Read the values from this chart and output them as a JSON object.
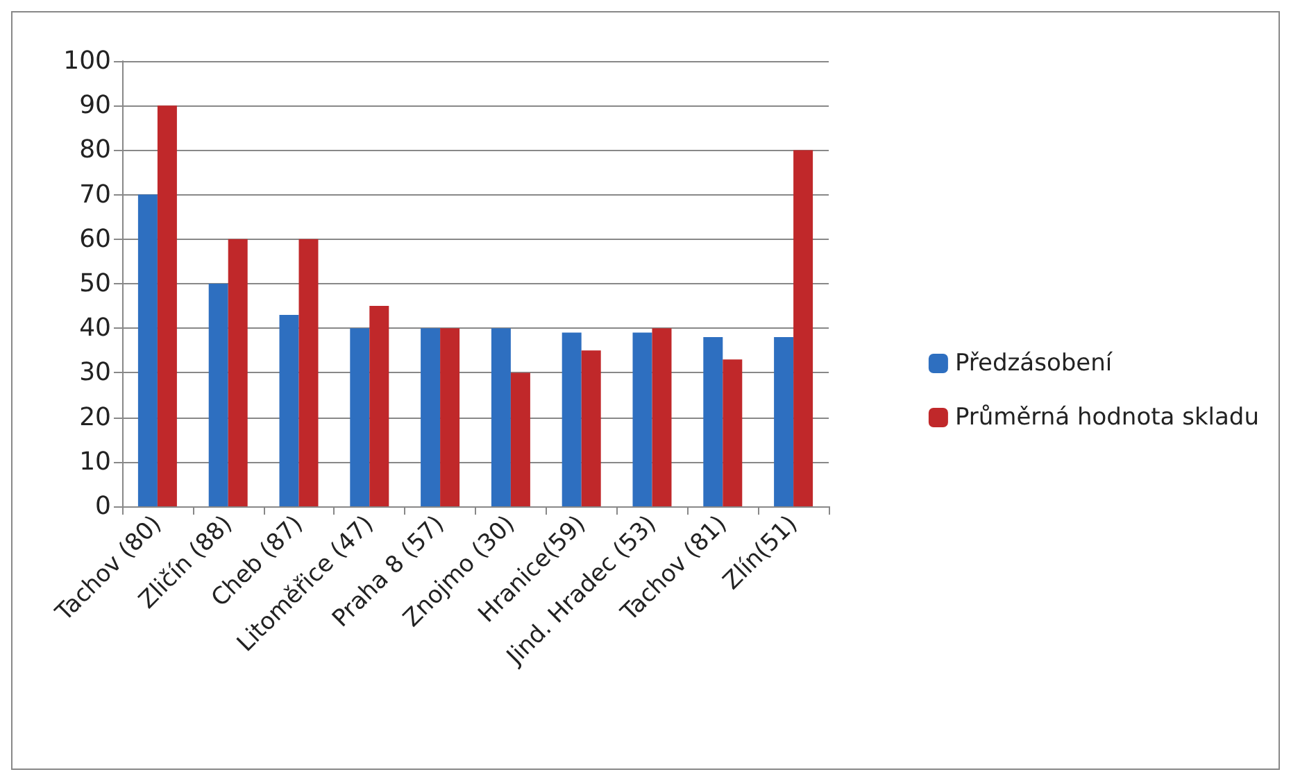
{
  "chart_data": {
    "type": "bar",
    "categories": [
      "Tachov (80)",
      "Zličín (88)",
      "Cheb (87)",
      "Litoměřice (47)",
      "Praha 8 (57)",
      "Znojmo (30)",
      "Hranice(59)",
      "Jind. Hradec (53)",
      "Tachov (81)",
      "Zlín(51)"
    ],
    "series": [
      {
        "name": "Předzásobení",
        "color": "#2e6fc0",
        "values": [
          70,
          50,
          43,
          40,
          40,
          40,
          39,
          39,
          38,
          38
        ]
      },
      {
        "name": "Průměrná hodnota skladu",
        "color": "#c0282a",
        "values": [
          90,
          60,
          60,
          45,
          40,
          30,
          35,
          40,
          33,
          80
        ]
      }
    ],
    "ylim": [
      0,
      100
    ],
    "yticks": [
      0,
      10,
      20,
      30,
      40,
      50,
      60,
      70,
      80,
      90,
      100
    ],
    "grid": "y",
    "legend": "right"
  }
}
